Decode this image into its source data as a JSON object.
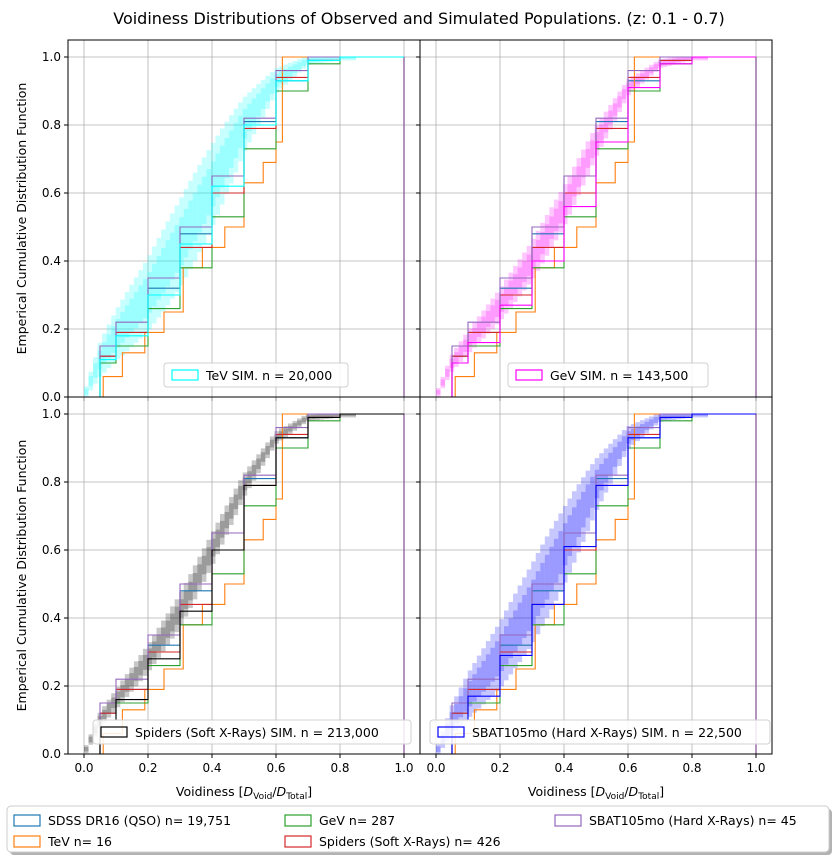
{
  "figure": {
    "title": "Voidiness Distributions of Observed and Simulated Populations. (z: 0.1 - 0.7)"
  },
  "common_axes": {
    "ylabel": "Emperical Cumulative Distribution Function",
    "xlabel_prefix": "Voidiness [",
    "xlabel_D": "D",
    "xlabel_void_sub": "Void",
    "xlabel_total_sub": "Total",
    "xlabel_suffix": "]",
    "xlim": [
      -0.05,
      1.05
    ],
    "ylim": [
      0.0,
      1.05
    ],
    "xticks": [
      "0.0",
      "0.2",
      "0.4",
      "0.6",
      "0.8",
      "1.0"
    ],
    "yticks": [
      "0.0",
      "0.2",
      "0.4",
      "0.6",
      "0.8",
      "1.0"
    ],
    "grid": true
  },
  "observed_legend": [
    {
      "label": "SDSS DR16 (QSO) n= 19,751",
      "color": "#1f77b4"
    },
    {
      "label": "TeV n= 16",
      "color": "#ff7f0e"
    },
    {
      "label": "GeV n= 287",
      "color": "#2ca02c"
    },
    {
      "label": "Spiders (Soft X-Rays) n= 426",
      "color": "#d62728"
    },
    {
      "label": "SBAT105mo (Hard X-Rays) n= 45",
      "color": "#9467bd"
    }
  ],
  "chart_data": [
    {
      "type": "line",
      "panel": "top-left",
      "legend_label": "TeV SIM. n = 20,000",
      "sim_color": "#00ffff",
      "ylabel_shown": true,
      "xlabel_shown": false,
      "xlim": [
        -0.05,
        1.05
      ],
      "ylim": [
        0.0,
        1.05
      ],
      "grid": true,
      "series": [
        {
          "name": "SDSS DR16 (QSO) n= 19,751",
          "x": [
            0.0,
            0.05,
            0.1,
            0.2,
            0.3,
            0.4,
            0.5,
            0.6,
            0.7,
            0.8,
            1.0
          ],
          "y": [
            0.0,
            0.12,
            0.19,
            0.32,
            0.48,
            0.65,
            0.81,
            0.93,
            0.99,
            1.0,
            1.0
          ]
        },
        {
          "name": "TeV n= 16",
          "x": [
            0.0,
            0.06,
            0.12,
            0.19,
            0.25,
            0.31,
            0.37,
            0.44,
            0.5,
            0.56,
            0.6,
            0.62,
            1.0
          ],
          "y": [
            0.0,
            0.06,
            0.13,
            0.19,
            0.25,
            0.38,
            0.44,
            0.5,
            0.63,
            0.69,
            0.75,
            1.0,
            1.0
          ]
        },
        {
          "name": "GeV n= 287",
          "x": [
            0.0,
            0.05,
            0.1,
            0.2,
            0.3,
            0.4,
            0.5,
            0.6,
            0.7,
            0.8,
            1.0
          ],
          "y": [
            0.0,
            0.1,
            0.15,
            0.26,
            0.38,
            0.53,
            0.73,
            0.9,
            0.98,
            1.0,
            1.0
          ]
        },
        {
          "name": "Spiders (Soft X-Rays) n= 426",
          "x": [
            0.0,
            0.05,
            0.1,
            0.2,
            0.3,
            0.4,
            0.5,
            0.6,
            0.7,
            0.8,
            1.0
          ],
          "y": [
            0.0,
            0.12,
            0.19,
            0.3,
            0.44,
            0.6,
            0.79,
            0.94,
            0.99,
            1.0,
            1.0
          ]
        },
        {
          "name": "SBAT105mo (Hard X-Rays) n= 45",
          "x": [
            0.0,
            0.05,
            0.1,
            0.2,
            0.3,
            0.4,
            0.5,
            0.6,
            0.7,
            0.8,
            1.0
          ],
          "y": [
            0.0,
            0.15,
            0.22,
            0.35,
            0.5,
            0.65,
            0.82,
            0.96,
            1.0,
            1.0,
            1.0
          ]
        },
        {
          "name": "TeV SIM. n = 20,000",
          "x": [
            0.0,
            0.05,
            0.1,
            0.2,
            0.3,
            0.4,
            0.5,
            0.6,
            0.7,
            0.8,
            1.0
          ],
          "y": [
            0.0,
            0.11,
            0.18,
            0.3,
            0.45,
            0.62,
            0.8,
            0.93,
            0.99,
            1.0,
            1.0
          ],
          "band_halfwidth": 0.12
        }
      ]
    },
    {
      "type": "line",
      "panel": "top-right",
      "legend_label": "GeV SIM. n = 143,500",
      "sim_color": "#ff00ff",
      "ylabel_shown": false,
      "xlabel_shown": false,
      "xlim": [
        -0.05,
        1.05
      ],
      "ylim": [
        0.0,
        1.05
      ],
      "grid": true,
      "series": [
        {
          "name": "SDSS DR16 (QSO) n= 19,751",
          "x": [
            0.0,
            0.05,
            0.1,
            0.2,
            0.3,
            0.4,
            0.5,
            0.6,
            0.7,
            0.8,
            1.0
          ],
          "y": [
            0.0,
            0.12,
            0.19,
            0.32,
            0.48,
            0.65,
            0.81,
            0.93,
            0.99,
            1.0,
            1.0
          ]
        },
        {
          "name": "TeV n= 16",
          "x": [
            0.0,
            0.06,
            0.12,
            0.19,
            0.25,
            0.31,
            0.37,
            0.44,
            0.5,
            0.56,
            0.6,
            0.62,
            1.0
          ],
          "y": [
            0.0,
            0.06,
            0.13,
            0.19,
            0.25,
            0.38,
            0.44,
            0.5,
            0.63,
            0.69,
            0.75,
            1.0,
            1.0
          ]
        },
        {
          "name": "GeV n= 287",
          "x": [
            0.0,
            0.05,
            0.1,
            0.2,
            0.3,
            0.4,
            0.5,
            0.6,
            0.7,
            0.8,
            1.0
          ],
          "y": [
            0.0,
            0.1,
            0.15,
            0.26,
            0.38,
            0.53,
            0.73,
            0.9,
            0.98,
            1.0,
            1.0
          ]
        },
        {
          "name": "Spiders (Soft X-Rays) n= 426",
          "x": [
            0.0,
            0.05,
            0.1,
            0.2,
            0.3,
            0.4,
            0.5,
            0.6,
            0.7,
            0.8,
            1.0
          ],
          "y": [
            0.0,
            0.12,
            0.19,
            0.3,
            0.44,
            0.6,
            0.79,
            0.94,
            0.99,
            1.0,
            1.0
          ]
        },
        {
          "name": "SBAT105mo (Hard X-Rays) n= 45",
          "x": [
            0.0,
            0.05,
            0.1,
            0.2,
            0.3,
            0.4,
            0.5,
            0.6,
            0.7,
            0.8,
            1.0
          ],
          "y": [
            0.0,
            0.15,
            0.22,
            0.35,
            0.5,
            0.65,
            0.82,
            0.96,
            1.0,
            1.0,
            1.0
          ]
        },
        {
          "name": "GeV SIM. n = 143,500",
          "x": [
            0.0,
            0.05,
            0.1,
            0.2,
            0.3,
            0.4,
            0.5,
            0.6,
            0.7,
            0.8,
            1.0
          ],
          "y": [
            0.0,
            0.1,
            0.16,
            0.27,
            0.4,
            0.56,
            0.75,
            0.91,
            0.98,
            1.0,
            1.0
          ],
          "band_halfwidth": 0.05
        }
      ]
    },
    {
      "type": "line",
      "panel": "bottom-left",
      "legend_label": "Spiders (Soft X-Rays) SIM. n = 213,000",
      "sim_color": "#000000",
      "ylabel_shown": true,
      "xlabel_shown": true,
      "xlim": [
        -0.05,
        1.05
      ],
      "ylim": [
        0.0,
        1.05
      ],
      "grid": true,
      "series": [
        {
          "name": "SDSS DR16 (QSO) n= 19,751",
          "x": [
            0.0,
            0.05,
            0.1,
            0.2,
            0.3,
            0.4,
            0.5,
            0.6,
            0.7,
            0.8,
            1.0
          ],
          "y": [
            0.0,
            0.12,
            0.19,
            0.32,
            0.48,
            0.65,
            0.81,
            0.93,
            0.99,
            1.0,
            1.0
          ]
        },
        {
          "name": "TeV n= 16",
          "x": [
            0.0,
            0.06,
            0.12,
            0.19,
            0.25,
            0.31,
            0.37,
            0.44,
            0.5,
            0.56,
            0.6,
            0.62,
            1.0
          ],
          "y": [
            0.0,
            0.06,
            0.13,
            0.19,
            0.25,
            0.38,
            0.44,
            0.5,
            0.63,
            0.69,
            0.75,
            1.0,
            1.0
          ]
        },
        {
          "name": "GeV n= 287",
          "x": [
            0.0,
            0.05,
            0.1,
            0.2,
            0.3,
            0.4,
            0.5,
            0.6,
            0.7,
            0.8,
            1.0
          ],
          "y": [
            0.0,
            0.1,
            0.15,
            0.26,
            0.38,
            0.53,
            0.73,
            0.9,
            0.98,
            1.0,
            1.0
          ]
        },
        {
          "name": "Spiders (Soft X-Rays) n= 426",
          "x": [
            0.0,
            0.05,
            0.1,
            0.2,
            0.3,
            0.4,
            0.5,
            0.6,
            0.7,
            0.8,
            1.0
          ],
          "y": [
            0.0,
            0.12,
            0.19,
            0.3,
            0.44,
            0.6,
            0.79,
            0.94,
            0.99,
            1.0,
            1.0
          ]
        },
        {
          "name": "SBAT105mo (Hard X-Rays) n= 45",
          "x": [
            0.0,
            0.05,
            0.1,
            0.2,
            0.3,
            0.4,
            0.5,
            0.6,
            0.7,
            0.8,
            1.0
          ],
          "y": [
            0.0,
            0.15,
            0.22,
            0.35,
            0.5,
            0.65,
            0.82,
            0.96,
            1.0,
            1.0,
            1.0
          ]
        },
        {
          "name": "Spiders (Soft X-Rays) SIM. n = 213,000",
          "x": [
            0.0,
            0.05,
            0.1,
            0.2,
            0.3,
            0.4,
            0.5,
            0.6,
            0.7,
            0.8,
            1.0
          ],
          "y": [
            0.0,
            0.1,
            0.16,
            0.28,
            0.42,
            0.6,
            0.79,
            0.93,
            0.99,
            1.0,
            1.0
          ],
          "band_halfwidth": 0.04
        }
      ]
    },
    {
      "type": "line",
      "panel": "bottom-right",
      "legend_label": "SBAT105mo (Hard X-Rays) SIM. n = 22,500",
      "sim_color": "#0000ff",
      "ylabel_shown": false,
      "xlabel_shown": true,
      "xlim": [
        -0.05,
        1.05
      ],
      "ylim": [
        0.0,
        1.05
      ],
      "grid": true,
      "series": [
        {
          "name": "SDSS DR16 (QSO) n= 19,751",
          "x": [
            0.0,
            0.05,
            0.1,
            0.2,
            0.3,
            0.4,
            0.5,
            0.6,
            0.7,
            0.8,
            1.0
          ],
          "y": [
            0.0,
            0.12,
            0.19,
            0.32,
            0.48,
            0.65,
            0.81,
            0.93,
            0.99,
            1.0,
            1.0
          ]
        },
        {
          "name": "TeV n= 16",
          "x": [
            0.0,
            0.06,
            0.12,
            0.19,
            0.25,
            0.31,
            0.37,
            0.44,
            0.5,
            0.56,
            0.6,
            0.62,
            1.0
          ],
          "y": [
            0.0,
            0.06,
            0.13,
            0.19,
            0.25,
            0.38,
            0.44,
            0.5,
            0.63,
            0.69,
            0.75,
            1.0,
            1.0
          ]
        },
        {
          "name": "GeV n= 287",
          "x": [
            0.0,
            0.05,
            0.1,
            0.2,
            0.3,
            0.4,
            0.5,
            0.6,
            0.7,
            0.8,
            1.0
          ],
          "y": [
            0.0,
            0.1,
            0.15,
            0.26,
            0.38,
            0.53,
            0.73,
            0.9,
            0.98,
            1.0,
            1.0
          ]
        },
        {
          "name": "Spiders (Soft X-Rays) n= 426",
          "x": [
            0.0,
            0.05,
            0.1,
            0.2,
            0.3,
            0.4,
            0.5,
            0.6,
            0.7,
            0.8,
            1.0
          ],
          "y": [
            0.0,
            0.12,
            0.19,
            0.3,
            0.44,
            0.6,
            0.79,
            0.94,
            0.99,
            1.0,
            1.0
          ]
        },
        {
          "name": "SBAT105mo (Hard X-Rays) n= 45",
          "x": [
            0.0,
            0.05,
            0.1,
            0.2,
            0.3,
            0.4,
            0.5,
            0.6,
            0.7,
            0.8,
            1.0
          ],
          "y": [
            0.0,
            0.15,
            0.22,
            0.35,
            0.5,
            0.65,
            0.82,
            0.96,
            1.0,
            1.0,
            1.0
          ]
        },
        {
          "name": "SBAT105mo (Hard X-Rays) SIM. n = 22,500",
          "x": [
            0.0,
            0.05,
            0.1,
            0.2,
            0.3,
            0.4,
            0.5,
            0.6,
            0.7,
            0.8,
            1.0
          ],
          "y": [
            0.0,
            0.1,
            0.17,
            0.29,
            0.44,
            0.61,
            0.79,
            0.93,
            0.99,
            1.0,
            1.0
          ],
          "band_halfwidth": 0.11
        }
      ]
    }
  ]
}
